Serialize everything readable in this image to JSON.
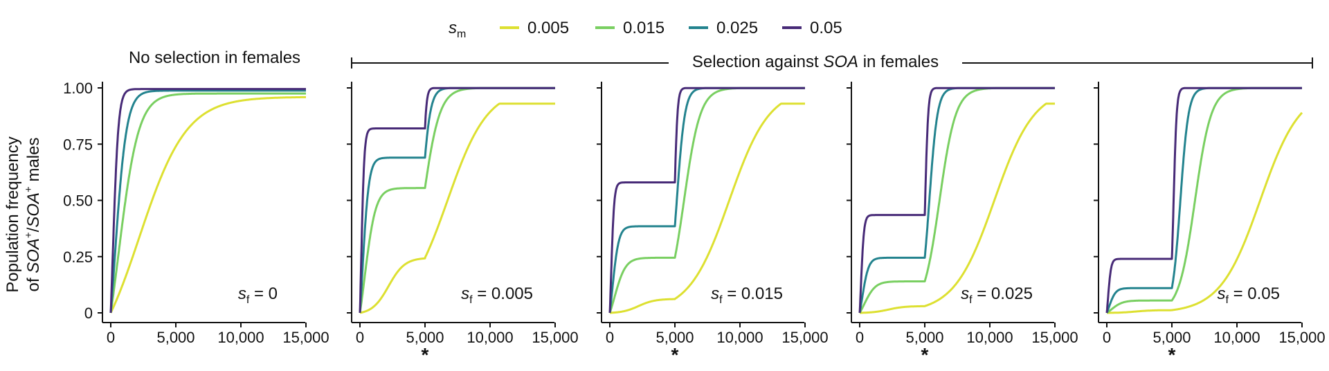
{
  "legend": {
    "symbol": "s",
    "symbol_sub": "m",
    "items": [
      {
        "label": "0.005",
        "color": "#dde031"
      },
      {
        "label": "0.015",
        "color": "#79cf61"
      },
      {
        "label": "0.025",
        "color": "#23838e"
      },
      {
        "label": "0.05",
        "color": "#472a77"
      }
    ]
  },
  "y_axis": {
    "label_line1": "Population frequency",
    "label_line2_prefix": "of ",
    "label_line2_gene1": "SOA",
    "label_line2_sup1": "+",
    "label_line2_slash": "/",
    "label_line2_gene2": "SOA",
    "label_line2_sup2": "+",
    "label_line2_suffix": " males"
  },
  "headers": {
    "no_selection": "No selection in females",
    "selection_prefix": "Selection against ",
    "selection_gene": "SOA",
    "selection_suffix": " in females"
  },
  "marker": "*",
  "chart_data": {
    "type": "line",
    "xlim": [
      0,
      15000
    ],
    "ylim": [
      0,
      1
    ],
    "x_ticks": [
      0,
      5000,
      10000,
      15000
    ],
    "x_tick_labels": [
      "0",
      "5,000",
      "10,000",
      "15,000"
    ],
    "y_ticks": [
      0,
      0.25,
      0.5,
      0.75,
      1.0
    ],
    "y_tick_labels": [
      "0",
      "0.25",
      "0.50",
      "0.75",
      "1.00"
    ],
    "series_names": [
      "0.005",
      "0.015",
      "0.025",
      "0.05"
    ],
    "series_colors": [
      "#dde031",
      "#79cf61",
      "#23838e",
      "#472a77"
    ],
    "selection_switch_generation": 5000,
    "panels": [
      {
        "sf_label": "0",
        "plateaus": null,
        "star": false,
        "end_values": [
          0.93,
          0.975,
          0.988,
          0.995
        ]
      },
      {
        "sf_label": "0.005",
        "plateaus": [
          0.245,
          0.555,
          0.69,
          0.82
        ],
        "star": true,
        "end_values": [
          0.915,
          0.975,
          0.988,
          0.995
        ]
      },
      {
        "sf_label": "0.015",
        "plateaus": [
          0.062,
          0.245,
          0.385,
          0.58
        ],
        "star": true,
        "end_values": [
          0.91,
          0.975,
          0.988,
          0.995
        ]
      },
      {
        "sf_label": "0.025",
        "plateaus": [
          0.03,
          0.14,
          0.245,
          0.435
        ],
        "star": true,
        "end_values": [
          0.905,
          0.975,
          0.988,
          0.995
        ]
      },
      {
        "sf_label": "0.05",
        "plateaus": [
          0.012,
          0.055,
          0.11,
          0.24
        ],
        "star": true,
        "end_values": [
          0.9,
          0.975,
          0.988,
          0.995
        ]
      }
    ]
  }
}
